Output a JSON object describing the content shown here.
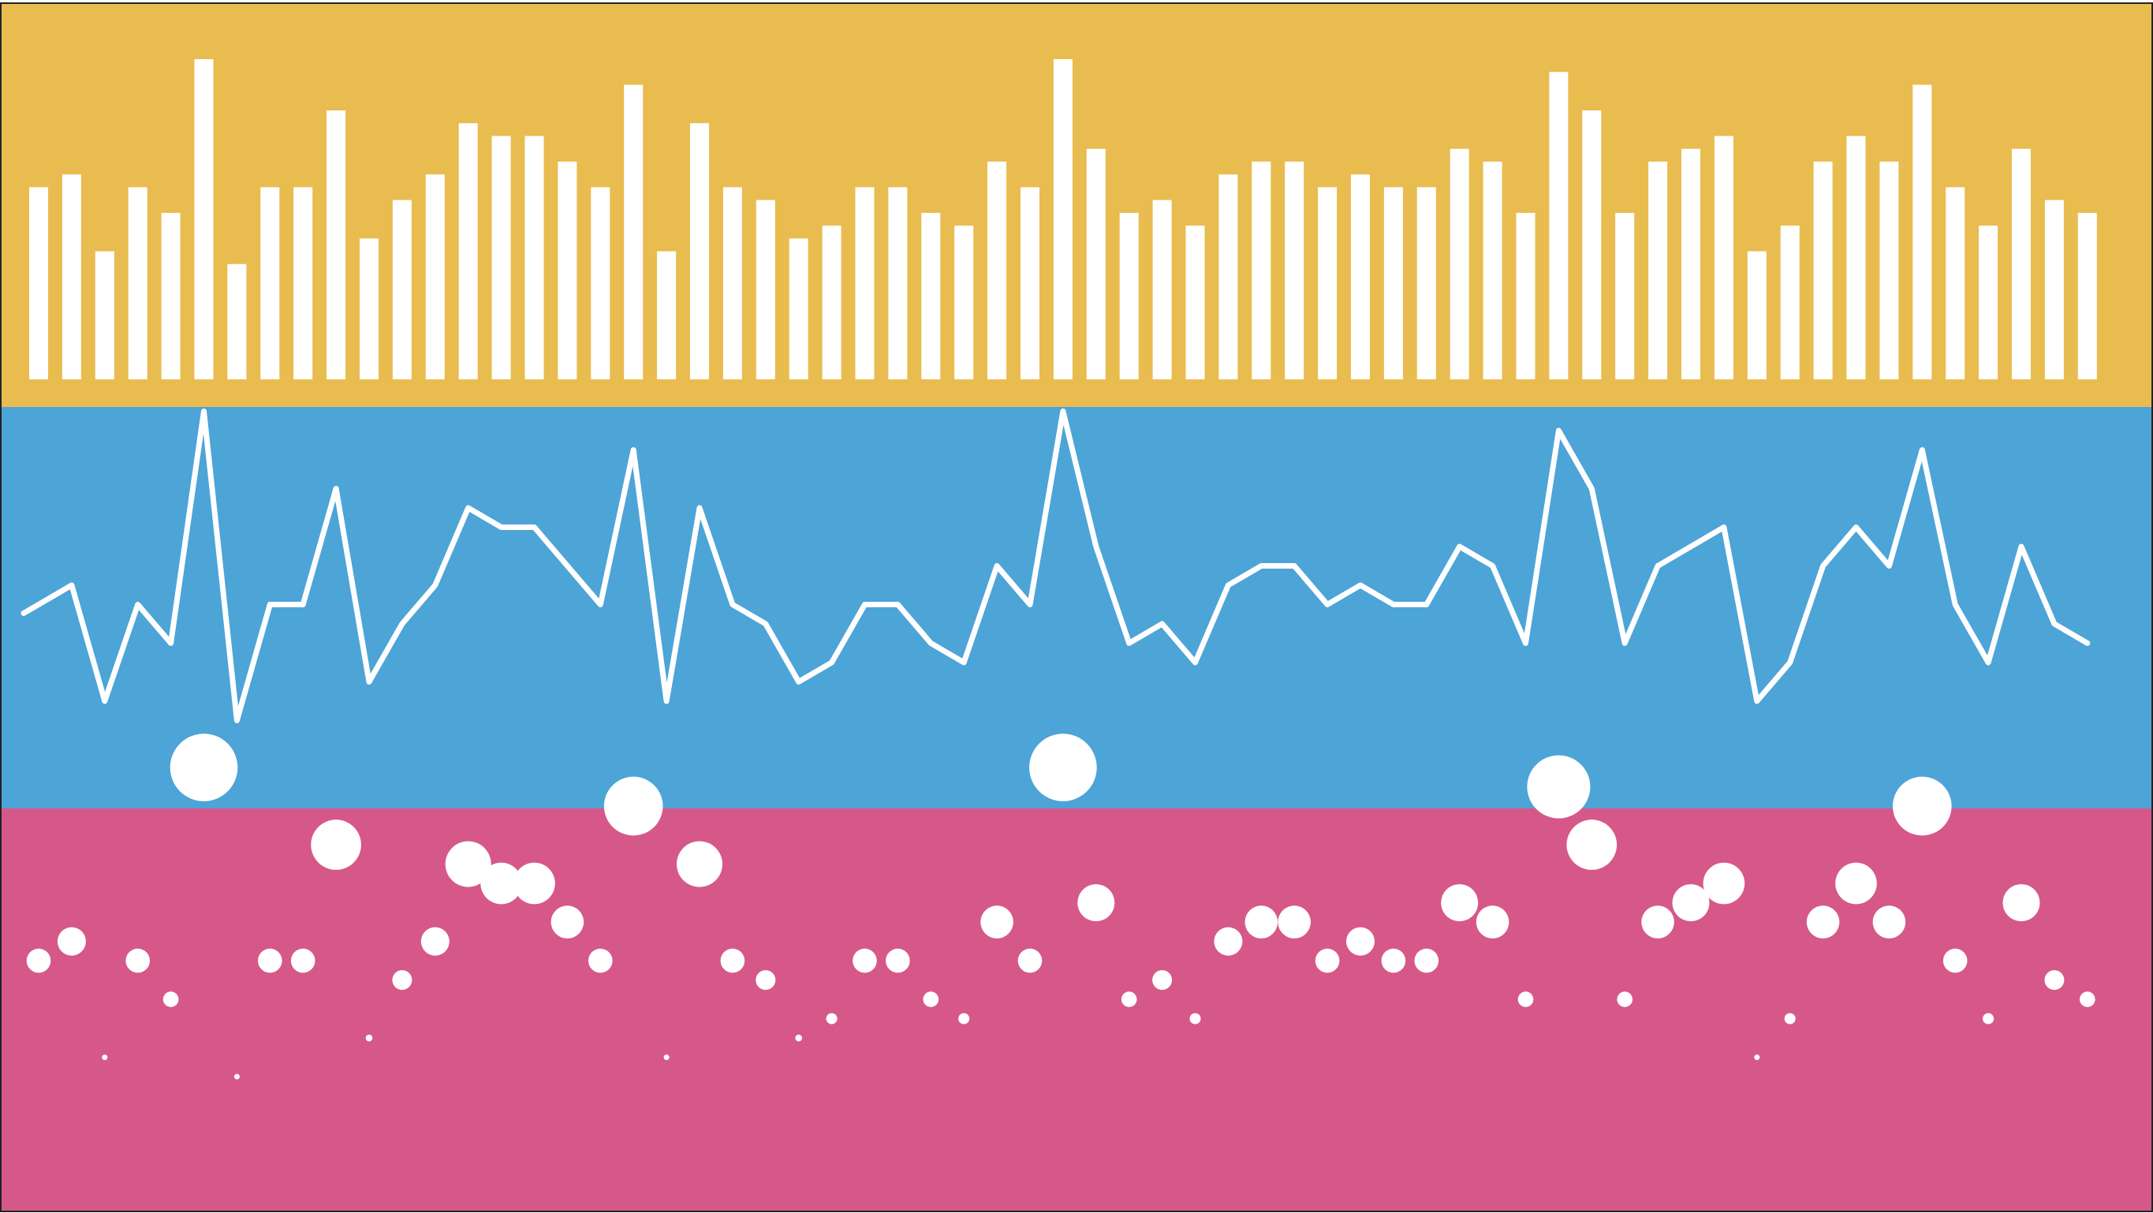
{
  "colors": {
    "bar_panel": "#E9BC50",
    "line_panel": "#4DA4D7",
    "dot_panel": "#D65889",
    "mark": "#FFFFFF",
    "frame": "#222222"
  },
  "chart_data": [
    {
      "type": "bar",
      "title": "",
      "xlabel": "",
      "ylabel": "",
      "grid": false,
      "legend": "none",
      "ylim": [
        0,
        25
      ],
      "values": [
        15,
        16,
        10,
        15,
        13,
        25,
        9,
        15,
        15,
        21,
        11,
        14,
        16,
        20,
        19,
        19,
        17,
        15,
        23,
        10,
        20,
        15,
        14,
        11,
        12,
        15,
        15,
        13,
        12,
        17,
        15,
        25,
        18,
        13,
        14,
        12,
        16,
        17,
        17,
        15,
        16,
        15,
        15,
        18,
        17,
        13,
        24,
        21,
        13,
        17,
        18,
        19,
        10,
        12,
        17,
        19,
        17,
        23,
        15,
        12,
        18,
        14,
        13
      ]
    },
    {
      "type": "line",
      "title": "",
      "xlabel": "",
      "ylabel": "",
      "grid": false,
      "legend": "none",
      "ylim": [
        0,
        25
      ],
      "values": [
        15,
        16,
        10,
        15,
        13,
        25,
        9,
        15,
        15,
        21,
        11,
        14,
        16,
        20,
        19,
        19,
        17,
        15,
        23,
        10,
        20,
        15,
        14,
        11,
        12,
        15,
        15,
        13,
        12,
        17,
        15,
        25,
        18,
        13,
        14,
        12,
        16,
        17,
        17,
        15,
        16,
        15,
        15,
        18,
        17,
        13,
        24,
        21,
        13,
        17,
        18,
        19,
        10,
        12,
        17,
        19,
        17,
        23,
        15,
        12,
        18,
        14,
        13
      ]
    },
    {
      "type": "scatter",
      "title": "",
      "xlabel": "",
      "ylabel": "",
      "grid": false,
      "legend": "none",
      "ylim": [
        0,
        25
      ],
      "size_encodes": "value",
      "values": [
        15,
        16,
        10,
        15,
        13,
        25,
        9,
        15,
        15,
        21,
        11,
        14,
        16,
        20,
        19,
        19,
        17,
        15,
        23,
        10,
        20,
        15,
        14,
        11,
        12,
        15,
        15,
        13,
        12,
        17,
        15,
        25,
        18,
        13,
        14,
        12,
        16,
        17,
        17,
        15,
        16,
        15,
        15,
        18,
        17,
        13,
        24,
        21,
        13,
        17,
        18,
        19,
        10,
        12,
        17,
        19,
        17,
        23,
        15,
        12,
        18,
        14,
        13
      ]
    }
  ]
}
